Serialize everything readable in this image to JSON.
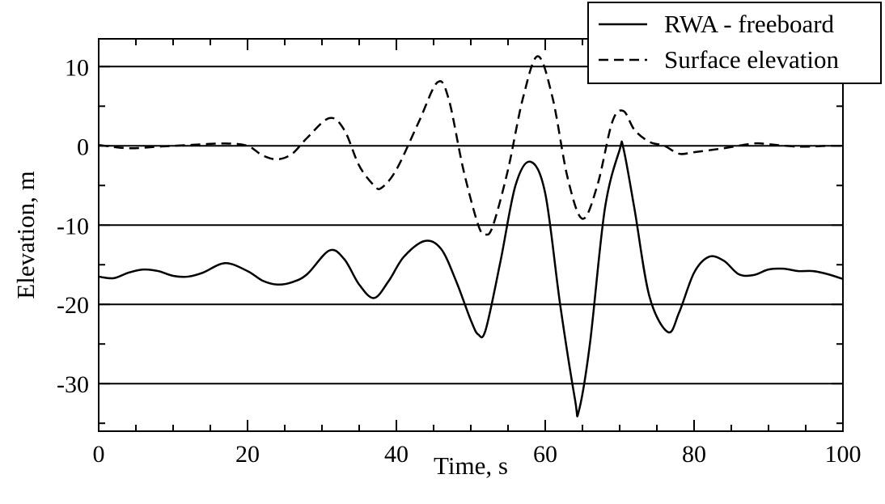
{
  "chart_data": {
    "type": "line",
    "xlabel": "Time, s",
    "ylabel": "Elevation, m",
    "xlim": [
      0,
      100
    ],
    "ylim": [
      -36,
      13.5
    ],
    "xticks": [
      0,
      20,
      40,
      60,
      80,
      100
    ],
    "xtick_labels": [
      "0",
      "20",
      "40",
      "60",
      "80",
      "100"
    ],
    "yticks": [
      -30,
      -20,
      -10,
      0,
      10
    ],
    "ytick_labels": [
      "-30",
      "-20",
      "-10",
      "0",
      "10"
    ],
    "grid": "horizontal lines at major y ticks",
    "legend": {
      "placement": "top-right"
    },
    "series": [
      {
        "name": "RWA - freeboard",
        "style": "solid",
        "color": "#000000",
        "x": [
          0,
          2,
          4,
          6,
          8,
          10,
          12,
          14,
          17,
          20,
          22,
          24,
          26,
          28,
          31,
          33,
          35,
          37,
          39,
          41,
          43.8,
          46,
          48,
          50,
          51,
          52,
          54,
          56,
          58,
          60,
          62,
          64,
          64.5,
          66,
          68,
          70,
          70.5,
          72,
          74,
          76.5,
          78,
          80,
          82,
          84,
          86,
          88,
          90,
          92,
          94,
          96,
          98,
          100
        ],
        "values": [
          -16.5,
          -16.7,
          -16,
          -15.6,
          -15.8,
          -16.4,
          -16.5,
          -16,
          -14.8,
          -15.8,
          -17,
          -17.5,
          -17.2,
          -16.2,
          -13.2,
          -14.3,
          -17.5,
          -19.2,
          -17,
          -14,
          -12,
          -13,
          -17,
          -22,
          -23.8,
          -23.2,
          -14.5,
          -5,
          -2,
          -6,
          -20,
          -32,
          -33.5,
          -25,
          -8,
          -0.5,
          -0.3,
          -8,
          -19,
          -23.5,
          -21,
          -16,
          -14,
          -14.5,
          -16.2,
          -16.3,
          -15.6,
          -15.5,
          -15.8,
          -15.8,
          -16.2,
          -16.8
        ]
      },
      {
        "name": "Surface elevation",
        "style": "dashed",
        "color": "#000000",
        "x": [
          0,
          4,
          8,
          12,
          17,
          20,
          22,
          24,
          26,
          28,
          31,
          33,
          35,
          37,
          38,
          40,
          43,
          45.5,
          47,
          49,
          51,
          52,
          53,
          55,
          57,
          59,
          61,
          63,
          65,
          67,
          69,
          70.5,
          72,
          74,
          76,
          78,
          80,
          84,
          88,
          90,
          94,
          98,
          100
        ],
        "values": [
          0.1,
          -0.3,
          -0.1,
          0.1,
          0.3,
          0,
          -1.2,
          -1.7,
          -1,
          1,
          3.5,
          2,
          -2.5,
          -5,
          -5.3,
          -3,
          3,
          8,
          6,
          -3,
          -10,
          -11.2,
          -10,
          -3,
          6,
          11.3,
          6,
          -4,
          -9.2,
          -5,
          3,
          4.4,
          2,
          0.5,
          0,
          -1,
          -0.8,
          -0.3,
          0.3,
          0.2,
          -0.1,
          0,
          0
        ]
      }
    ]
  }
}
